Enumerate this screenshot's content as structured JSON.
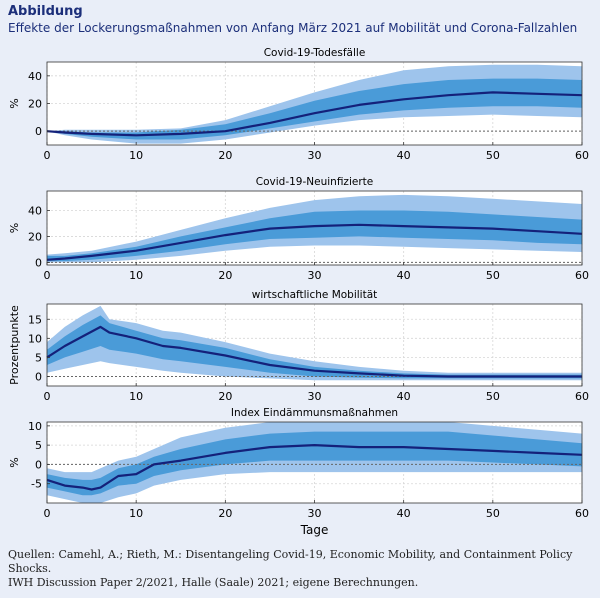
{
  "header": {
    "title": "Abbildung",
    "subtitle": "Effekte der Lockerungsmaßnahmen von Anfang März 2021 auf Mobilität und Corona-Fallzahlen"
  },
  "source": {
    "line1": "Quellen: Camehl, A.; Rieth, M.: Disentangeling Covid-19, Economic Mobility, and Containment Policy Shocks.",
    "line2": "IWH Discussion Paper 2/2021, Halle (Saale) 2021; eigene Berechnungen."
  },
  "colors": {
    "outer_band": "#9ec4ec",
    "inner_band": "#4a9bd8",
    "median_line": "#14217a",
    "zero_line": "#666666"
  },
  "chart_data": [
    {
      "type": "area",
      "title": "Covid-19-Todesfälle",
      "ylabel": "%",
      "xlabel": "",
      "xlim": [
        0,
        60
      ],
      "ylim": [
        -10,
        50
      ],
      "yticks": [
        0,
        20,
        40
      ],
      "xticks": [
        0,
        10,
        20,
        30,
        40,
        50,
        60
      ],
      "grid": true,
      "x": [
        0,
        2,
        5,
        10,
        15,
        20,
        25,
        30,
        35,
        40,
        45,
        50,
        55,
        60
      ],
      "series": [
        {
          "band": "outer",
          "lower": [
            0,
            -3,
            -6,
            -9,
            -9,
            -6,
            -1,
            4,
            8,
            10,
            11,
            12,
            11,
            10
          ],
          "upper": [
            0,
            1,
            1,
            1,
            2,
            8,
            18,
            28,
            37,
            44,
            47,
            48,
            48,
            47
          ]
        },
        {
          "band": "inner",
          "lower": [
            0,
            -2,
            -4,
            -6,
            -6,
            -3,
            2,
            7,
            12,
            15,
            17,
            18,
            18,
            17
          ],
          "upper": [
            0,
            0,
            -1,
            -1,
            1,
            5,
            13,
            22,
            29,
            34,
            37,
            38,
            38,
            37
          ]
        },
        {
          "band": "median",
          "values": [
            0,
            -1,
            -2,
            -3,
            -2,
            0,
            6,
            13,
            19,
            23,
            26,
            28,
            27,
            26
          ]
        }
      ]
    },
    {
      "type": "area",
      "title": "Covid-19-Neuinfizierte",
      "ylabel": "%",
      "xlabel": "",
      "xlim": [
        0,
        60
      ],
      "ylim": [
        -2,
        55
      ],
      "yticks": [
        0,
        20,
        40
      ],
      "xticks": [
        0,
        10,
        20,
        30,
        40,
        50,
        60
      ],
      "grid": true,
      "x": [
        0,
        2,
        5,
        10,
        15,
        20,
        25,
        30,
        35,
        40,
        45,
        50,
        55,
        60
      ],
      "series": [
        {
          "band": "outer",
          "lower": [
            0,
            0,
            0,
            2,
            5,
            9,
            12,
            13,
            13,
            12,
            11,
            10,
            9,
            8
          ],
          "upper": [
            6,
            7,
            9,
            16,
            25,
            34,
            42,
            48,
            51,
            52,
            51,
            49,
            47,
            45
          ]
        },
        {
          "band": "inner",
          "lower": [
            1,
            1,
            2,
            5,
            9,
            14,
            18,
            19,
            20,
            19,
            18,
            17,
            15,
            14
          ],
          "upper": [
            5,
            5,
            7,
            12,
            20,
            27,
            34,
            39,
            40,
            40,
            39,
            37,
            35,
            33
          ]
        },
        {
          "band": "median",
          "values": [
            2,
            3,
            5,
            9,
            15,
            21,
            26,
            28,
            29,
            28,
            27,
            26,
            24,
            22
          ]
        }
      ]
    },
    {
      "type": "area",
      "title": "wirtschaftliche Mobilität",
      "ylabel": "Prozentpunkte",
      "xlabel": "",
      "xlim": [
        0,
        60
      ],
      "ylim": [
        -2.5,
        19
      ],
      "yticks": [
        0,
        5,
        10,
        15
      ],
      "xticks": [
        0,
        10,
        20,
        30,
        40,
        50,
        60
      ],
      "grid": true,
      "x": [
        0,
        2,
        4,
        6,
        7,
        10,
        13,
        15,
        20,
        25,
        30,
        35,
        40,
        45,
        50,
        55,
        60
      ],
      "series": [
        {
          "band": "outer",
          "lower": [
            1,
            2,
            3,
            4,
            3.5,
            2.5,
            1.5,
            1,
            0,
            -0.5,
            -1,
            -1,
            -1,
            -1,
            -1,
            -1,
            -1
          ],
          "upper": [
            9,
            13,
            16,
            18.5,
            15,
            14,
            12,
            11.5,
            9,
            6,
            4,
            2.5,
            1.5,
            1,
            1,
            1,
            1
          ]
        },
        {
          "band": "inner",
          "lower": [
            3,
            5,
            6.5,
            8,
            7,
            6,
            4.5,
            4,
            2.5,
            1,
            0,
            -0.3,
            -0.5,
            -0.5,
            -0.5,
            -0.5,
            -0.5
          ],
          "upper": [
            7,
            10.5,
            13.5,
            16,
            14,
            12,
            10,
            9.5,
            7.5,
            4.5,
            2.5,
            1.5,
            0.8,
            0.5,
            0.5,
            0.5,
            0.5
          ]
        },
        {
          "band": "median",
          "values": [
            5,
            8,
            10.5,
            13,
            11.5,
            10,
            8,
            7.5,
            5.5,
            3,
            1.5,
            0.8,
            0.2,
            0,
            0,
            0,
            0
          ]
        }
      ]
    },
    {
      "type": "area",
      "title": "Index Eindämmunsmaßnahmen",
      "ylabel": "%",
      "xlabel": "Tage",
      "xlim": [
        0,
        60
      ],
      "ylim": [
        -10,
        11
      ],
      "yticks": [
        -5,
        0,
        5,
        10
      ],
      "xticks": [
        0,
        10,
        20,
        30,
        40,
        50,
        60
      ],
      "grid": true,
      "x": [
        0,
        2,
        4,
        5,
        6,
        8,
        10,
        12,
        15,
        20,
        25,
        30,
        35,
        40,
        45,
        50,
        55,
        60
      ],
      "series": [
        {
          "band": "outer",
          "lower": [
            -8,
            -9,
            -10,
            -10,
            -10,
            -8.5,
            -7.5,
            -5.5,
            -4,
            -2.5,
            -2,
            -2,
            -2,
            -2,
            -2,
            -2,
            -2,
            -2
          ],
          "upper": [
            -1,
            -2,
            -2,
            -2,
            -1,
            1,
            2,
            4,
            7,
            9.5,
            11,
            11,
            11,
            11,
            11,
            10,
            9,
            8
          ]
        },
        {
          "band": "inner",
          "lower": [
            -6,
            -7,
            -8,
            -8,
            -7.5,
            -5.5,
            -5,
            -3,
            -1.5,
            0,
            1,
            1,
            1,
            1,
            1,
            0.5,
            0,
            -0.5
          ],
          "upper": [
            -2.5,
            -3.5,
            -4,
            -4,
            -3.5,
            -1,
            0,
            2,
            4,
            6.5,
            8,
            8.5,
            8.5,
            8.5,
            8.5,
            7.5,
            6.5,
            5.5
          ]
        },
        {
          "band": "median",
          "values": [
            -4,
            -5.5,
            -6,
            -6.5,
            -6,
            -3,
            -2.5,
            0,
            1,
            3,
            4.5,
            5,
            4.5,
            4.5,
            4,
            3.5,
            3,
            2.5
          ]
        }
      ]
    }
  ]
}
